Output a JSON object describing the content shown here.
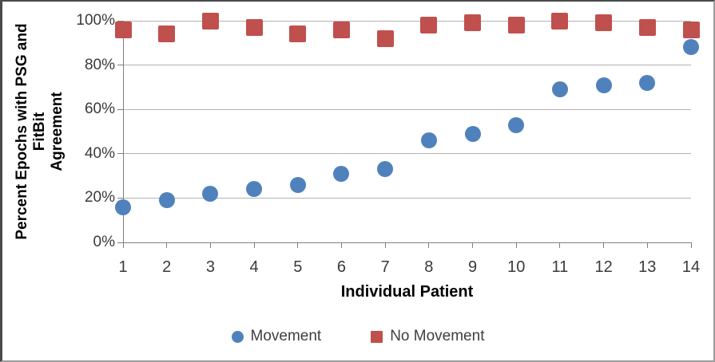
{
  "chart_data": {
    "type": "scatter",
    "title": "",
    "xlabel": "Individual Patient",
    "ylabel": "Percent Epochs with PSG and FitBit Agreement",
    "ylabel_lines": [
      "Percent Epochs with PSG and FitBit",
      "Agreement"
    ],
    "categories": [
      1,
      2,
      3,
      4,
      5,
      6,
      7,
      8,
      9,
      10,
      11,
      12,
      13,
      14
    ],
    "x_tick_labels": [
      "1",
      "2",
      "3",
      "4",
      "5",
      "6",
      "7",
      "8",
      "9",
      "10",
      "11",
      "12",
      "13",
      "14"
    ],
    "y_tick_labels": [
      "100%",
      "80%",
      "60%",
      "40%",
      "20%",
      "0%"
    ],
    "y_tick_values": [
      100,
      80,
      60,
      40,
      20,
      0
    ],
    "ylim": [
      0,
      100
    ],
    "xlim": [
      1,
      14
    ],
    "grid": "horizontal",
    "legend_position": "bottom",
    "series": [
      {
        "name": "Movement",
        "marker": "circle",
        "color": "#4F81BD",
        "values": [
          16,
          19,
          22,
          24,
          26,
          31,
          33,
          46,
          49,
          53,
          69,
          71,
          72,
          88
        ]
      },
      {
        "name": "No Movement",
        "marker": "square",
        "color": "#C0504D",
        "values": [
          96,
          94,
          100,
          97,
          94,
          96,
          92,
          98,
          99,
          98,
          100,
          99,
          97,
          96
        ]
      }
    ]
  },
  "colors": {
    "gridline": "#b3b3b3",
    "axis": "#7f7f7f",
    "tick_label": "#3a3a3a",
    "movement": "#4F81BD",
    "no_movement": "#C0504D"
  }
}
